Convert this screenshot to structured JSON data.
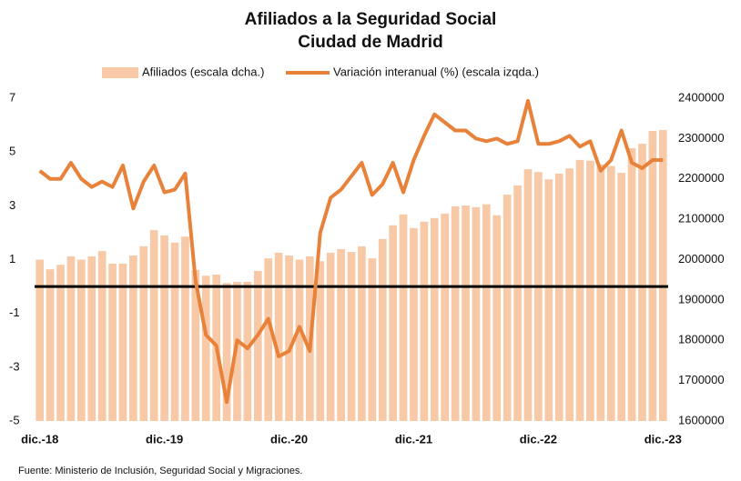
{
  "chart_data": {
    "type": "bar_line",
    "title": [
      "Afiliados a la Seguridad Social",
      "Ciudad de Madrid"
    ],
    "source": "Fuente: Ministerio de Inclusión, Seguridad Social y Migraciones.",
    "categories": [
      "dic.-18",
      null,
      null,
      null,
      null,
      null,
      null,
      null,
      null,
      null,
      null,
      null,
      "dic.-19",
      null,
      null,
      null,
      null,
      null,
      null,
      null,
      null,
      null,
      null,
      null,
      "dic.-20",
      null,
      null,
      null,
      null,
      null,
      null,
      null,
      null,
      null,
      null,
      null,
      "dic.-21",
      null,
      null,
      null,
      null,
      null,
      null,
      null,
      null,
      null,
      null,
      null,
      "dic.-22",
      null,
      null,
      null,
      null,
      null,
      null,
      null,
      null,
      null,
      null,
      null,
      "dic.-23"
    ],
    "series": [
      {
        "name": "Afiliados (escala dcha.)",
        "type": "bar",
        "axis": "y2",
        "color": "#f8c9a6",
        "values": [
          2000000,
          1976000,
          1987000,
          2008000,
          2000000,
          2008000,
          2021000,
          1990000,
          1990000,
          2010000,
          2033000,
          2073000,
          2060000,
          2042000,
          2057000,
          1974000,
          1960000,
          1963000,
          1942000,
          1945000,
          1945000,
          1972000,
          2003000,
          2017000,
          2010000,
          2000000,
          2008000,
          1996000,
          2017000,
          2026000,
          2019000,
          2033000,
          2003000,
          2051000,
          2085000,
          2112000,
          2078000,
          2094000,
          2103000,
          2114000,
          2132000,
          2134000,
          2130000,
          2137000,
          2110000,
          2161000,
          2184000,
          2224000,
          2217000,
          2199000,
          2213000,
          2226000,
          2247000,
          2245000,
          2236000,
          2232000,
          2215000,
          2276000,
          2287000,
          2319000,
          2321000
        ]
      },
      {
        "name": "Variación interanual (%) (escala izqda.)",
        "type": "line",
        "axis": "y",
        "color": "#e8823a",
        "values": [
          4.3,
          4.0,
          4.0,
          4.6,
          4.0,
          3.7,
          3.9,
          3.7,
          4.5,
          2.9,
          3.9,
          4.5,
          3.5,
          3.6,
          4.2,
          0.2,
          -1.8,
          -2.2,
          -4.3,
          -2.0,
          -2.3,
          -1.8,
          -1.2,
          -2.6,
          -2.4,
          -1.5,
          -2.4,
          2.0,
          3.3,
          3.6,
          4.1,
          4.6,
          3.4,
          3.8,
          4.6,
          3.5,
          4.7,
          5.6,
          6.4,
          6.1,
          5.8,
          5.8,
          5.5,
          5.4,
          5.5,
          5.3,
          5.4,
          6.9,
          5.3,
          5.3,
          5.4,
          5.6,
          5.2,
          5.4,
          4.3,
          4.7,
          5.8,
          4.6,
          4.4,
          4.7,
          4.7
        ]
      }
    ],
    "ylim": [
      -5,
      7
    ],
    "yticks": [
      -5,
      -3,
      -1,
      1,
      3,
      5,
      7
    ],
    "y2lim": [
      1600000,
      2400000
    ],
    "y2ticks": [
      1600000,
      1700000,
      1800000,
      1900000,
      2000000,
      2100000,
      2200000,
      2300000,
      2400000
    ],
    "reference_line": 0,
    "legend": "top"
  }
}
